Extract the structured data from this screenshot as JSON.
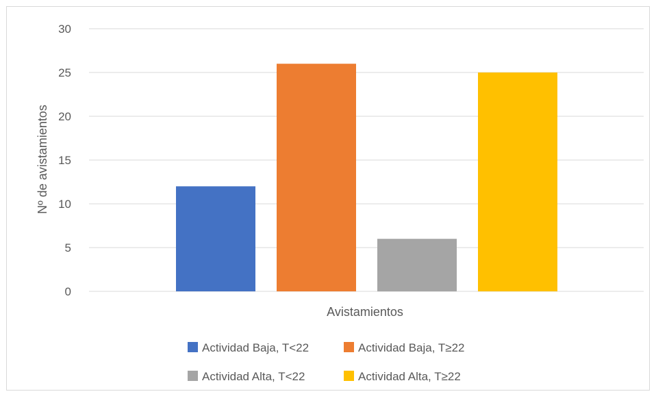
{
  "chart_data": {
    "type": "bar",
    "title": "",
    "categories": [
      "Avistamientos"
    ],
    "xlabel": "Avistamientos",
    "ylabel": "Nº de avistamientos",
    "ylim": [
      0,
      30
    ],
    "yticks": [
      0,
      5,
      10,
      15,
      20,
      25,
      30
    ],
    "grid": true,
    "legend_position": "bottom",
    "series": [
      {
        "name": "Actividad Baja, T<22",
        "values": [
          12
        ],
        "color": "#4472C4"
      },
      {
        "name": "Actividad Baja, T≥22",
        "values": [
          26
        ],
        "color": "#ED7D31"
      },
      {
        "name": "Actividad Alta, T<22",
        "values": [
          6
        ],
        "color": "#A5A5A5"
      },
      {
        "name": "Actividad Alta, T≥22",
        "values": [
          25
        ],
        "color": "#FFC000"
      }
    ]
  }
}
